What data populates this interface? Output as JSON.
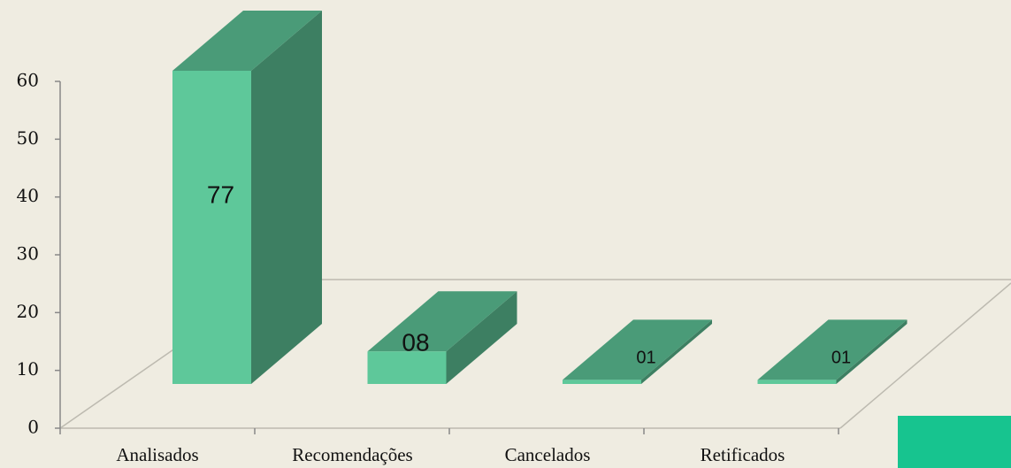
{
  "chart_data": {
    "type": "bar3d",
    "categories": [
      "Analisados",
      "Recomendações",
      "Cancelados",
      "Retificados"
    ],
    "values": [
      77,
      8,
      1,
      1
    ],
    "value_labels": [
      "77",
      "08",
      "01",
      "01"
    ],
    "colors": {
      "front": "#5ec89a",
      "top": "#4a9b78",
      "side": "#3d7f62"
    },
    "ylim": [
      0,
      60
    ],
    "yticks": [
      0,
      10,
      20,
      30,
      40,
      50,
      60
    ]
  }
}
